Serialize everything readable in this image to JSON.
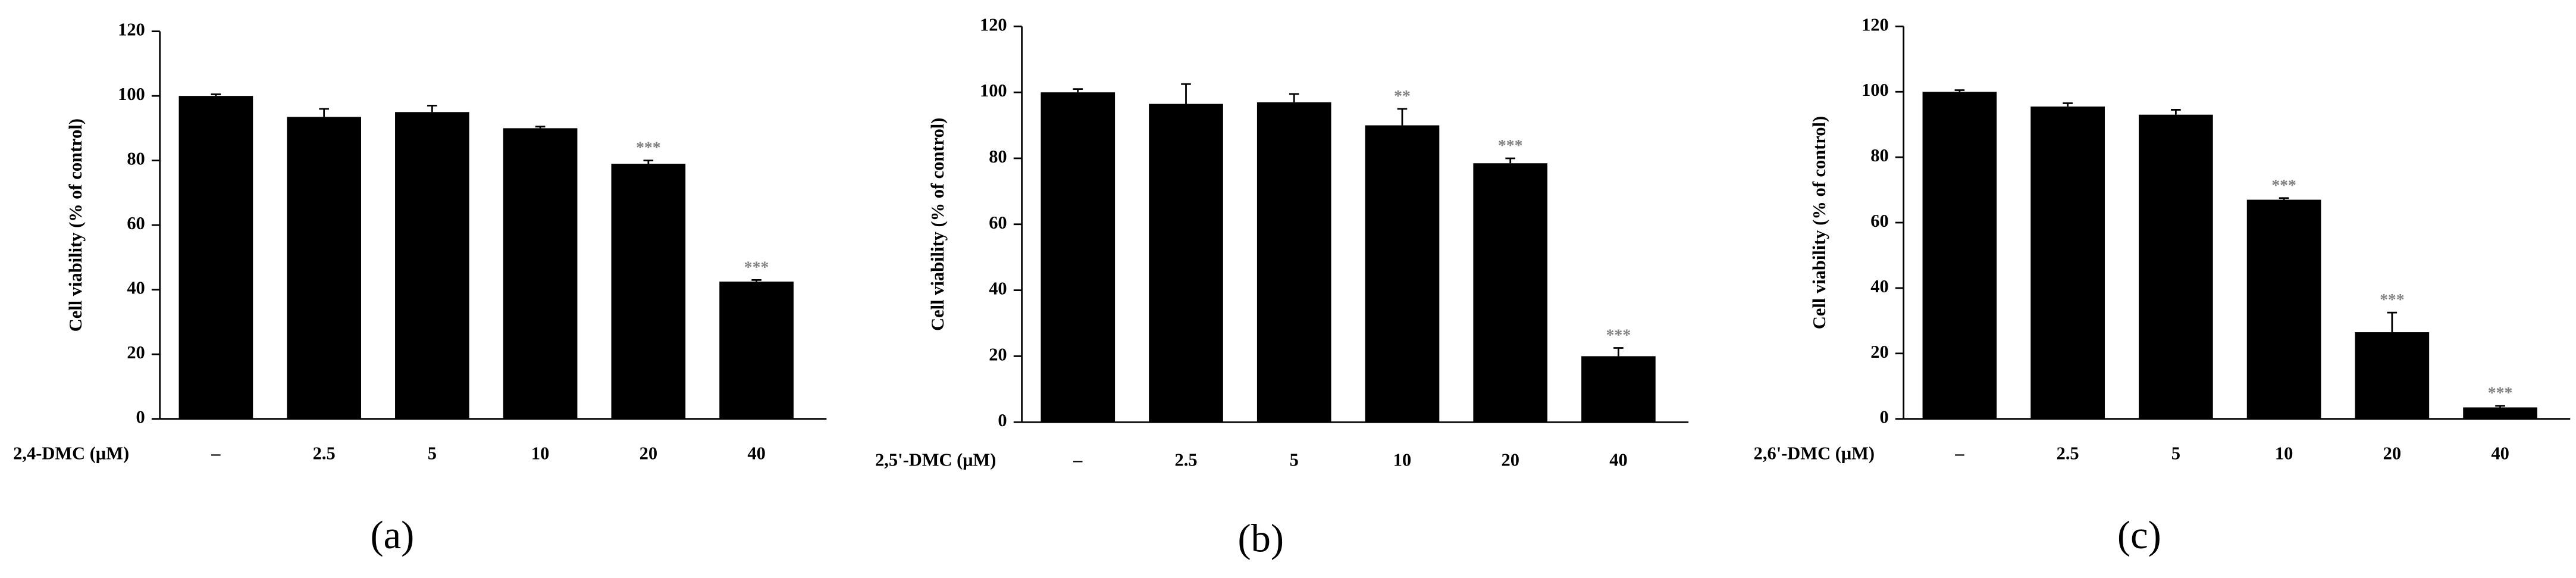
{
  "chart_data": [
    {
      "type": "bar",
      "panel_label": "(a)",
      "y_label": "Cell viability (% of control)",
      "x_label": "2,4-DMC (μM)",
      "categories": [
        "–",
        "2.5",
        "5",
        "10",
        "20",
        "40"
      ],
      "values": [
        100,
        93.5,
        95,
        90,
        79,
        42.5
      ],
      "errors": [
        0.5,
        2.5,
        2,
        0.5,
        1,
        0.5
      ],
      "significance": [
        null,
        null,
        null,
        null,
        "***",
        "***"
      ],
      "color": "#000000",
      "ylim": [
        0,
        120
      ],
      "yticks": [
        0,
        20,
        40,
        60,
        80,
        100,
        120
      ]
    },
    {
      "type": "bar",
      "panel_label": "(b)",
      "y_label": "Cell viability (% of control)",
      "x_label": "2,5'-DMC (μM)",
      "categories": [
        "–",
        "2.5",
        "5",
        "10",
        "20",
        "40"
      ],
      "values": [
        100,
        96.5,
        97,
        90,
        78.5,
        20
      ],
      "errors": [
        1,
        6,
        2.5,
        5,
        1.5,
        2.5
      ],
      "significance": [
        null,
        null,
        null,
        "**",
        "***",
        "***"
      ],
      "color": "#000000",
      "ylim": [
        0,
        120
      ],
      "yticks": [
        0,
        20,
        40,
        60,
        80,
        100,
        120
      ]
    },
    {
      "type": "bar",
      "panel_label": "(c)",
      "y_label": "Cell viability (% of control)",
      "x_label": "2,6'-DMC (μM)",
      "categories": [
        "–",
        "2.5",
        "5",
        "10",
        "20",
        "40"
      ],
      "values": [
        100,
        95.5,
        93,
        67,
        26.5,
        3.5
      ],
      "errors": [
        0.5,
        1,
        1.5,
        0.5,
        6,
        0.5
      ],
      "significance": [
        null,
        null,
        null,
        "***",
        "***",
        "***"
      ],
      "color": "#000000",
      "ylim": [
        0,
        120
      ],
      "yticks": [
        0,
        20,
        40,
        60,
        80,
        100,
        120
      ]
    }
  ]
}
